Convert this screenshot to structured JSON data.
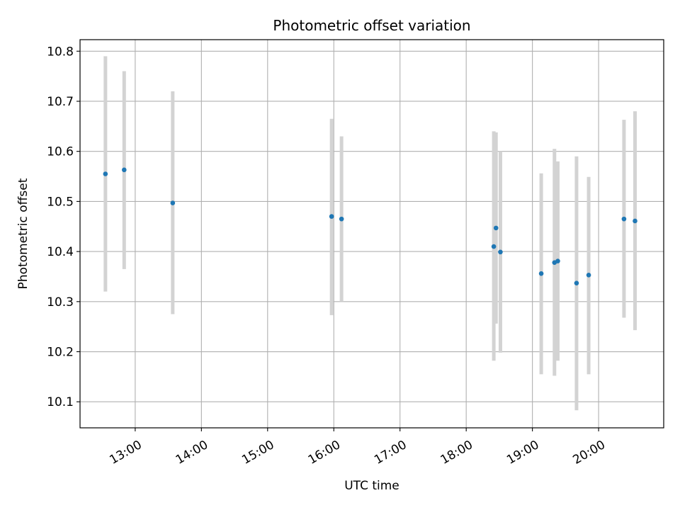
{
  "chart_data": {
    "type": "scatter",
    "title": "Photometric offset variation",
    "xlabel": "UTC time",
    "ylabel": "Photometric offset",
    "x_unit": "hour",
    "xlim": [
      "12:10",
      "20:59"
    ],
    "ylim": [
      10.048,
      10.823
    ],
    "x_ticks": [
      "13:00",
      "14:00",
      "15:00",
      "16:00",
      "17:00",
      "18:00",
      "19:00",
      "20:00"
    ],
    "y_ticks": [
      "10.1",
      "10.2",
      "10.3",
      "10.4",
      "10.5",
      "10.6",
      "10.7",
      "10.8"
    ],
    "grid": true,
    "colors": {
      "point": "#1f77b4",
      "errorbar": "#d3d3d3",
      "grid": "#b0b0b0"
    },
    "points": [
      {
        "x": "12:33",
        "y": 10.555,
        "low": 10.32,
        "high": 10.79
      },
      {
        "x": "12:50",
        "y": 10.563,
        "low": 10.365,
        "high": 10.76
      },
      {
        "x": "13:34",
        "y": 10.497,
        "low": 10.275,
        "high": 10.72
      },
      {
        "x": "15:58",
        "y": 10.47,
        "low": 10.273,
        "high": 10.665
      },
      {
        "x": "16:07",
        "y": 10.465,
        "low": 10.3,
        "high": 10.63
      },
      {
        "x": "18:25",
        "y": 10.41,
        "low": 10.182,
        "high": 10.64
      },
      {
        "x": "18:27",
        "y": 10.447,
        "low": 10.256,
        "high": 10.638
      },
      {
        "x": "18:31",
        "y": 10.399,
        "low": 10.198,
        "high": 10.6
      },
      {
        "x": "19:08",
        "y": 10.356,
        "low": 10.155,
        "high": 10.556
      },
      {
        "x": "19:20",
        "y": 10.378,
        "low": 10.152,
        "high": 10.605
      },
      {
        "x": "19:23",
        "y": 10.381,
        "low": 10.182,
        "high": 10.58
      },
      {
        "x": "19:40",
        "y": 10.337,
        "low": 10.083,
        "high": 10.59
      },
      {
        "x": "19:51",
        "y": 10.353,
        "low": 10.155,
        "high": 10.549
      },
      {
        "x": "20:23",
        "y": 10.465,
        "low": 10.268,
        "high": 10.663
      },
      {
        "x": "20:33",
        "y": 10.461,
        "low": 10.243,
        "high": 10.68
      }
    ]
  }
}
